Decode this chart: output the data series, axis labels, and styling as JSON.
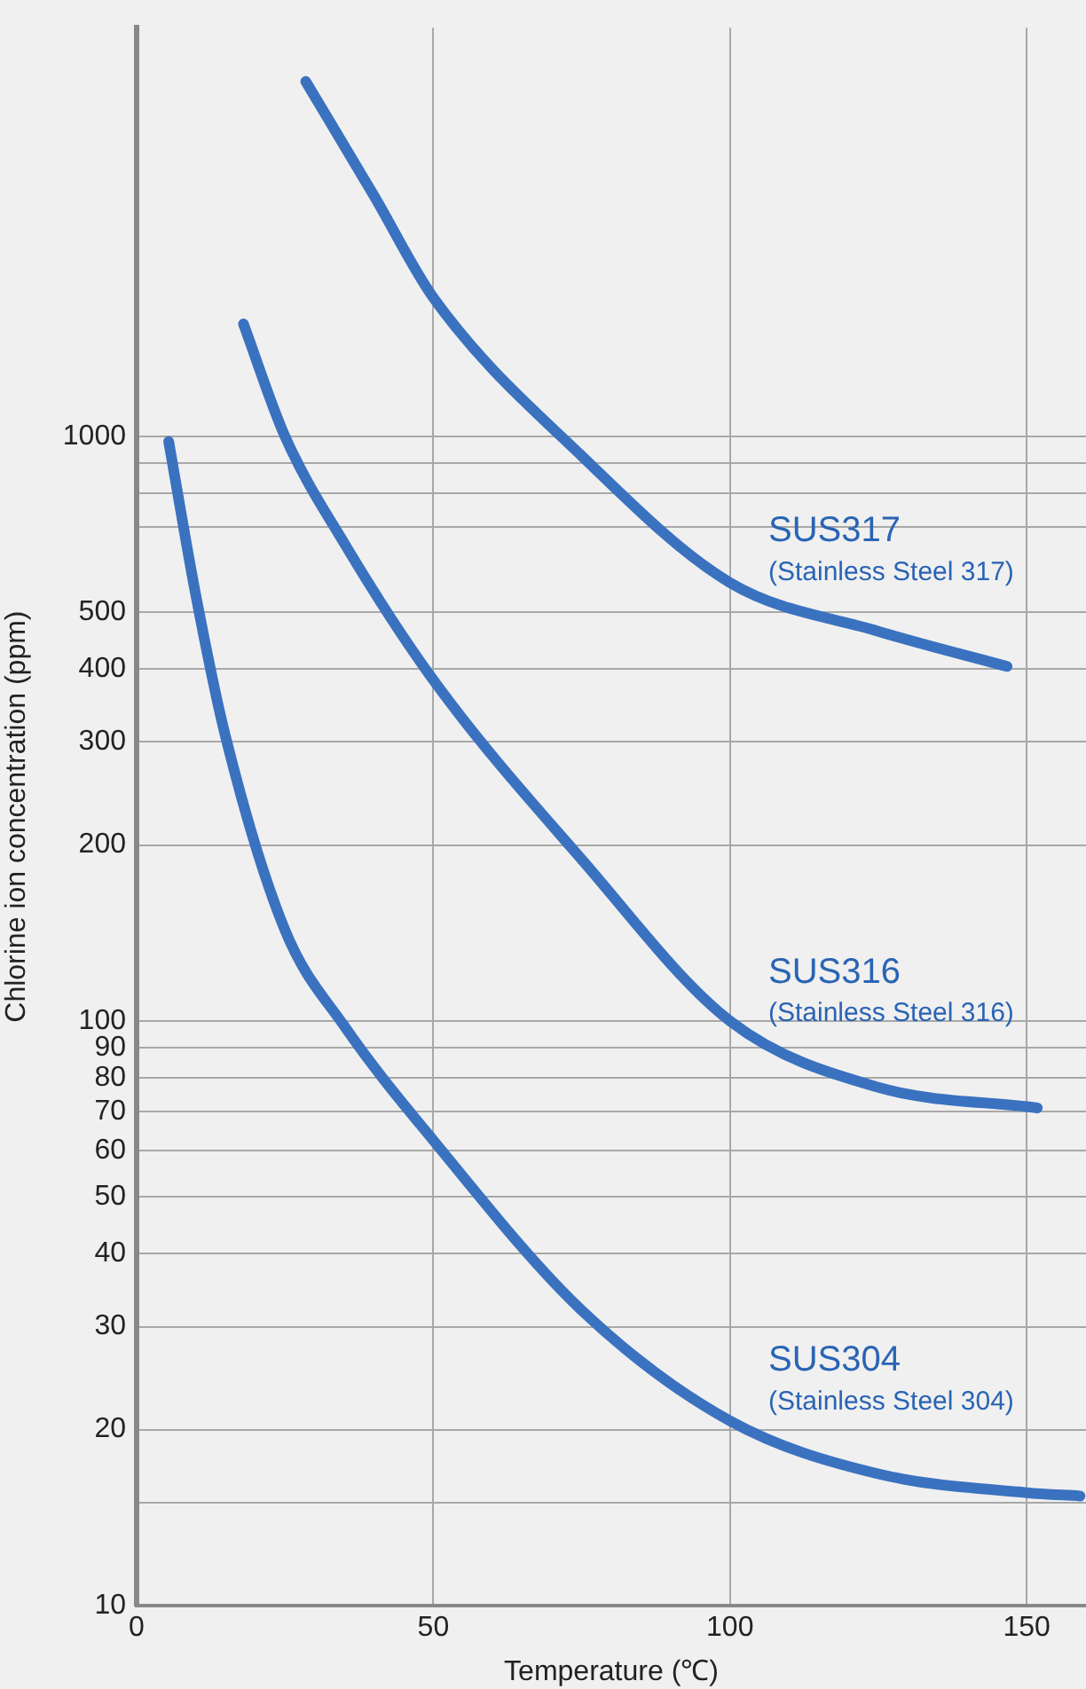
{
  "chart_data": {
    "type": "line",
    "xlabel": "Temperature (℃)",
    "ylabel": "Chlorine ion concentration (ppm)",
    "log": "y",
    "grid": true,
    "legend": false,
    "marker": "none",
    "line_style": "solid",
    "xlim": [
      0,
      160
    ],
    "xticks": [
      0,
      50,
      100,
      150
    ],
    "ylim": [
      10,
      5000
    ],
    "yticks": [
      10,
      {
        "value": 15,
        "label": null
      },
      20,
      30,
      40,
      50,
      60,
      70,
      80,
      90,
      100,
      200,
      300,
      400,
      500,
      {
        "value": 700,
        "label": null
      },
      {
        "value": 800,
        "label": null
      },
      {
        "value": 900,
        "label": null
      },
      1000
    ],
    "series": [
      {
        "name": "SUS317",
        "color": "#3a72c0",
        "x": [
          28.5,
          40,
          50,
          75,
          100,
          125,
          146.7
        ],
        "values": [
          4045,
          2580,
          1727,
          926,
          562,
          464,
          404
        ]
      },
      {
        "name": "SUS316",
        "color": "#3a72c0",
        "x": [
          18,
          25,
          35,
          50,
          75,
          100,
          125,
          151.8
        ],
        "values": [
          1557,
          1000,
          656,
          383,
          189,
          100,
          77,
          71
        ]
      },
      {
        "name": "SUS304",
        "color": "#3a72c0",
        "x": [
          5.4,
          10,
          15,
          25,
          35,
          50,
          75,
          100,
          125,
          150,
          159
        ],
        "values": [
          980,
          533,
          306,
          143,
          98,
          62.5,
          32,
          20.7,
          16.8,
          15.6,
          15.4
        ]
      }
    ],
    "annotations": [
      "(Stainless Steel 317)",
      "(Stainless Steel 316)",
      "(Stainless Steel 304)"
    ]
  }
}
